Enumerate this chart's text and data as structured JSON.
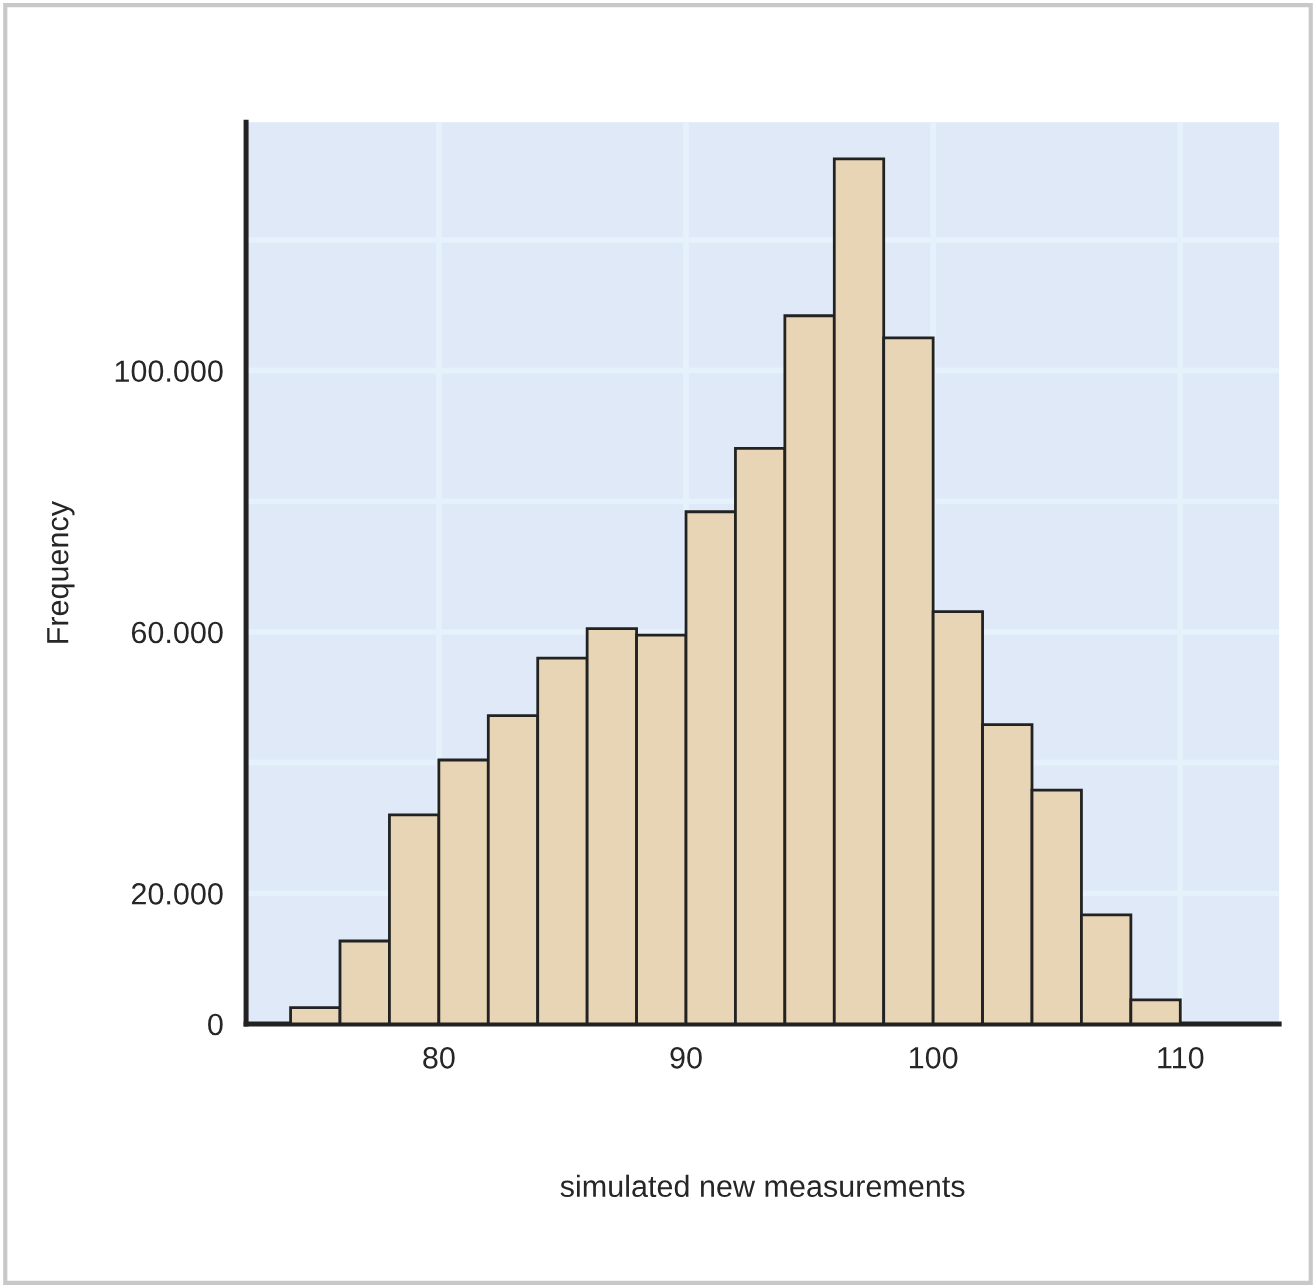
{
  "chart_data": {
    "type": "histogram",
    "xlabel": "simulated new measurements",
    "ylabel": "Frequency",
    "bins": [
      74,
      76,
      78,
      80,
      82,
      84,
      86,
      88,
      90,
      92,
      94,
      96,
      98,
      100,
      102,
      104,
      106,
      108,
      110
    ],
    "values": [
      2500,
      12700,
      32000,
      40400,
      47200,
      56000,
      60500,
      59500,
      78400,
      88100,
      108400,
      132400,
      105000,
      63100,
      45800,
      35800,
      16700,
      3700
    ],
    "color": "#e8d5b5",
    "xlim": [
      72.2,
      114
    ],
    "xticks": [
      80,
      90,
      100,
      110
    ],
    "ylim": [
      0,
      138000
    ],
    "yticks": [
      {
        "value": 0,
        "label": "0"
      },
      {
        "value": 20000,
        "label": "20.000"
      },
      {
        "value": 40000,
        "label": null
      },
      {
        "value": 60000,
        "label": "60.000"
      },
      {
        "value": 80000,
        "label": null
      },
      {
        "value": 100000,
        "label": "100.000"
      },
      {
        "value": 120000,
        "label": null
      }
    ],
    "grid": true
  }
}
